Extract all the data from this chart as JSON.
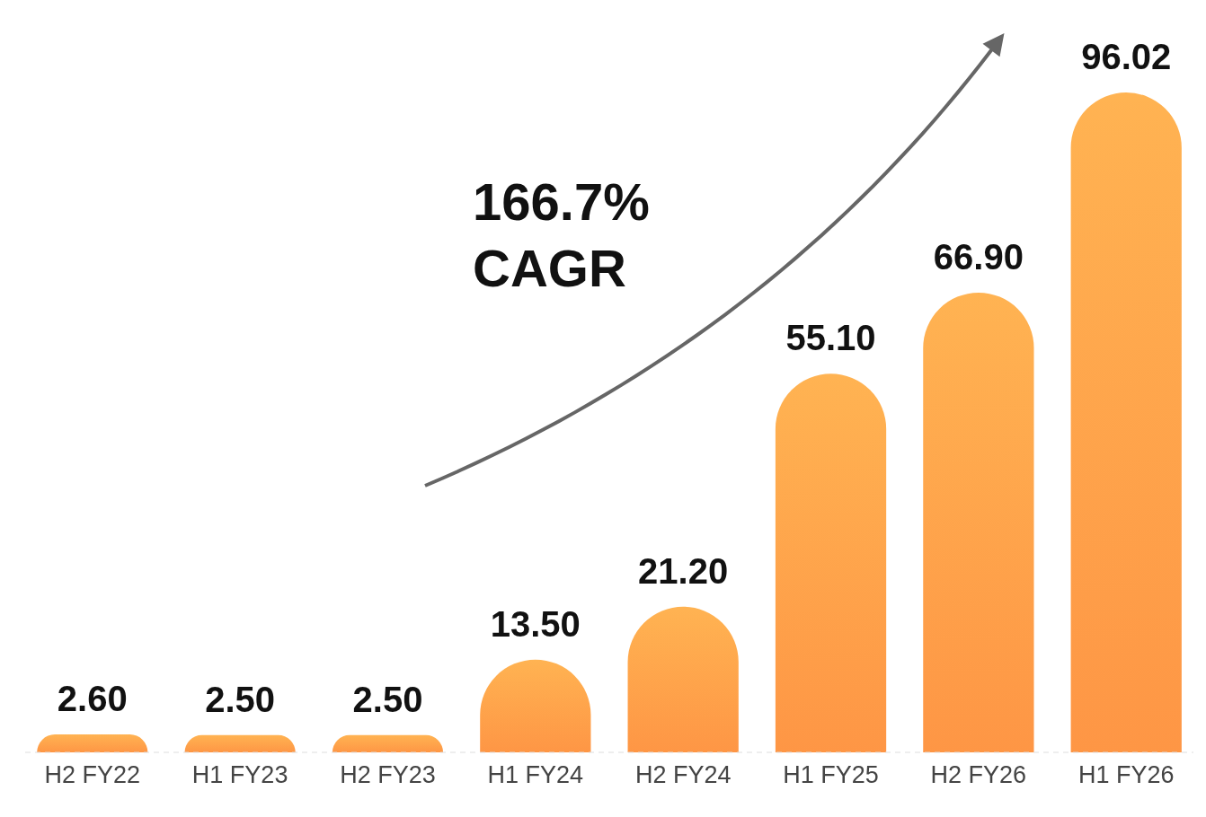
{
  "chart_data": {
    "type": "bar",
    "categories": [
      "H2 FY22",
      "H1 FY23",
      "H2 FY23",
      "H1 FY24",
      "H2 FY24",
      "H1 FY25",
      "H2 FY26",
      "H1 FY26"
    ],
    "values": [
      2.6,
      2.5,
      2.5,
      13.5,
      21.2,
      55.1,
      66.9,
      96.02
    ],
    "value_labels": [
      "2.60",
      "2.50",
      "2.50",
      "13.50",
      "21.20",
      "55.10",
      "66.90",
      "96.02"
    ],
    "color": "#fe9645",
    "relative": false,
    "annotations": [
      "166.7% CAGR"
    ]
  }
}
